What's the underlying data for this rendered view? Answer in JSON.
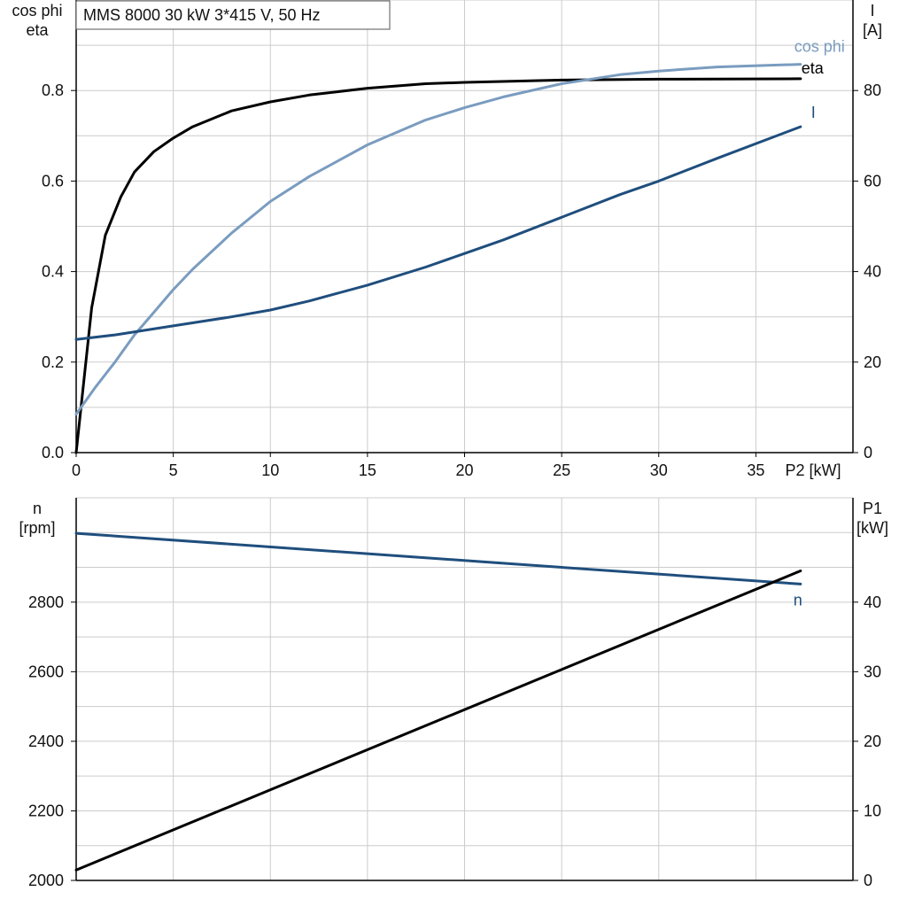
{
  "chart_data": [
    {
      "type": "line",
      "title": "MMS 8000   30 kW   3*415 V, 50 Hz",
      "xlabel": "P2 [kW]",
      "xlim": [
        0,
        40
      ],
      "x_ticks": [
        0,
        5,
        10,
        15,
        20,
        25,
        30,
        35
      ],
      "x_grid": [
        0,
        5,
        10,
        15,
        20,
        25,
        30,
        35,
        40
      ],
      "y_left": {
        "label_lines": [
          "cos phi",
          "eta"
        ],
        "lim": [
          0,
          1.0
        ],
        "ticks": [
          "0.0",
          "0.2",
          "0.4",
          "0.6",
          "0.8"
        ],
        "tick_values": [
          0.0,
          0.2,
          0.4,
          0.6,
          0.8
        ],
        "grid": [
          0.1,
          0.2,
          0.3,
          0.4,
          0.5,
          0.6,
          0.7,
          0.8,
          0.9,
          1.0
        ]
      },
      "y_right": {
        "label_lines": [
          "I",
          "[A]"
        ],
        "lim": [
          0,
          100
        ],
        "ticks": [
          "0",
          "20",
          "40",
          "60",
          "80"
        ],
        "tick_values": [
          0,
          20,
          40,
          60,
          80
        ]
      },
      "grid": true,
      "series": [
        {
          "name": "eta",
          "axis": "left",
          "color": "#000000",
          "x": [
            0,
            0.8,
            1.5,
            2.3,
            3,
            4,
            5,
            6,
            8,
            10,
            12,
            15,
            18,
            20,
            25,
            30,
            37.3
          ],
          "y": [
            0.0,
            0.32,
            0.48,
            0.565,
            0.62,
            0.665,
            0.695,
            0.72,
            0.755,
            0.775,
            0.79,
            0.805,
            0.815,
            0.818,
            0.823,
            0.825,
            0.826
          ]
        },
        {
          "name": "cos phi",
          "axis": "left",
          "color": "#7a9cbf",
          "x": [
            0,
            1,
            2,
            3,
            4,
            5,
            6,
            8,
            10,
            12,
            15,
            18,
            20,
            22,
            25,
            28,
            30,
            33,
            37.3
          ],
          "y": [
            0.085,
            0.145,
            0.2,
            0.26,
            0.31,
            0.36,
            0.405,
            0.485,
            0.555,
            0.61,
            0.68,
            0.735,
            0.762,
            0.786,
            0.815,
            0.835,
            0.843,
            0.852,
            0.858
          ]
        },
        {
          "name": "I",
          "axis": "right",
          "color": "#1f4e7d",
          "x": [
            0,
            2,
            5,
            8,
            10,
            12,
            15,
            18,
            20,
            22,
            25,
            28,
            30,
            33,
            37.3
          ],
          "y": [
            25,
            26,
            28,
            30,
            31.5,
            33.5,
            37,
            41,
            44,
            47,
            52,
            57,
            60,
            65,
            72
          ]
        }
      ]
    },
    {
      "type": "line",
      "xlim": [
        0,
        40
      ],
      "x_grid": [
        0,
        5,
        10,
        15,
        20,
        25,
        30,
        35,
        40
      ],
      "y_left": {
        "label_lines": [
          "n",
          "[rpm]"
        ],
        "lim": [
          2000,
          3100
        ],
        "ticks": [
          "2000",
          "2200",
          "2400",
          "2600",
          "2800"
        ],
        "tick_values": [
          2000,
          2200,
          2400,
          2600,
          2800
        ],
        "grid": [
          2100,
          2200,
          2300,
          2400,
          2500,
          2600,
          2700,
          2800,
          2900,
          3000,
          3100
        ]
      },
      "y_right": {
        "label_lines": [
          "P1",
          "[kW]"
        ],
        "lim": [
          0,
          55
        ],
        "ticks": [
          "0",
          "10",
          "20",
          "30",
          "40"
        ],
        "tick_values": [
          0,
          10,
          20,
          30,
          40
        ]
      },
      "grid": true,
      "series": [
        {
          "name": "n",
          "axis": "left",
          "color": "#1f4e7d",
          "x": [
            0,
            37.3
          ],
          "y": [
            2998,
            2852
          ]
        },
        {
          "name": "P1",
          "axis": "right",
          "color": "#000000",
          "label_shown": false,
          "x": [
            0,
            37.3
          ],
          "y": [
            1.5,
            44.5
          ]
        }
      ]
    }
  ]
}
